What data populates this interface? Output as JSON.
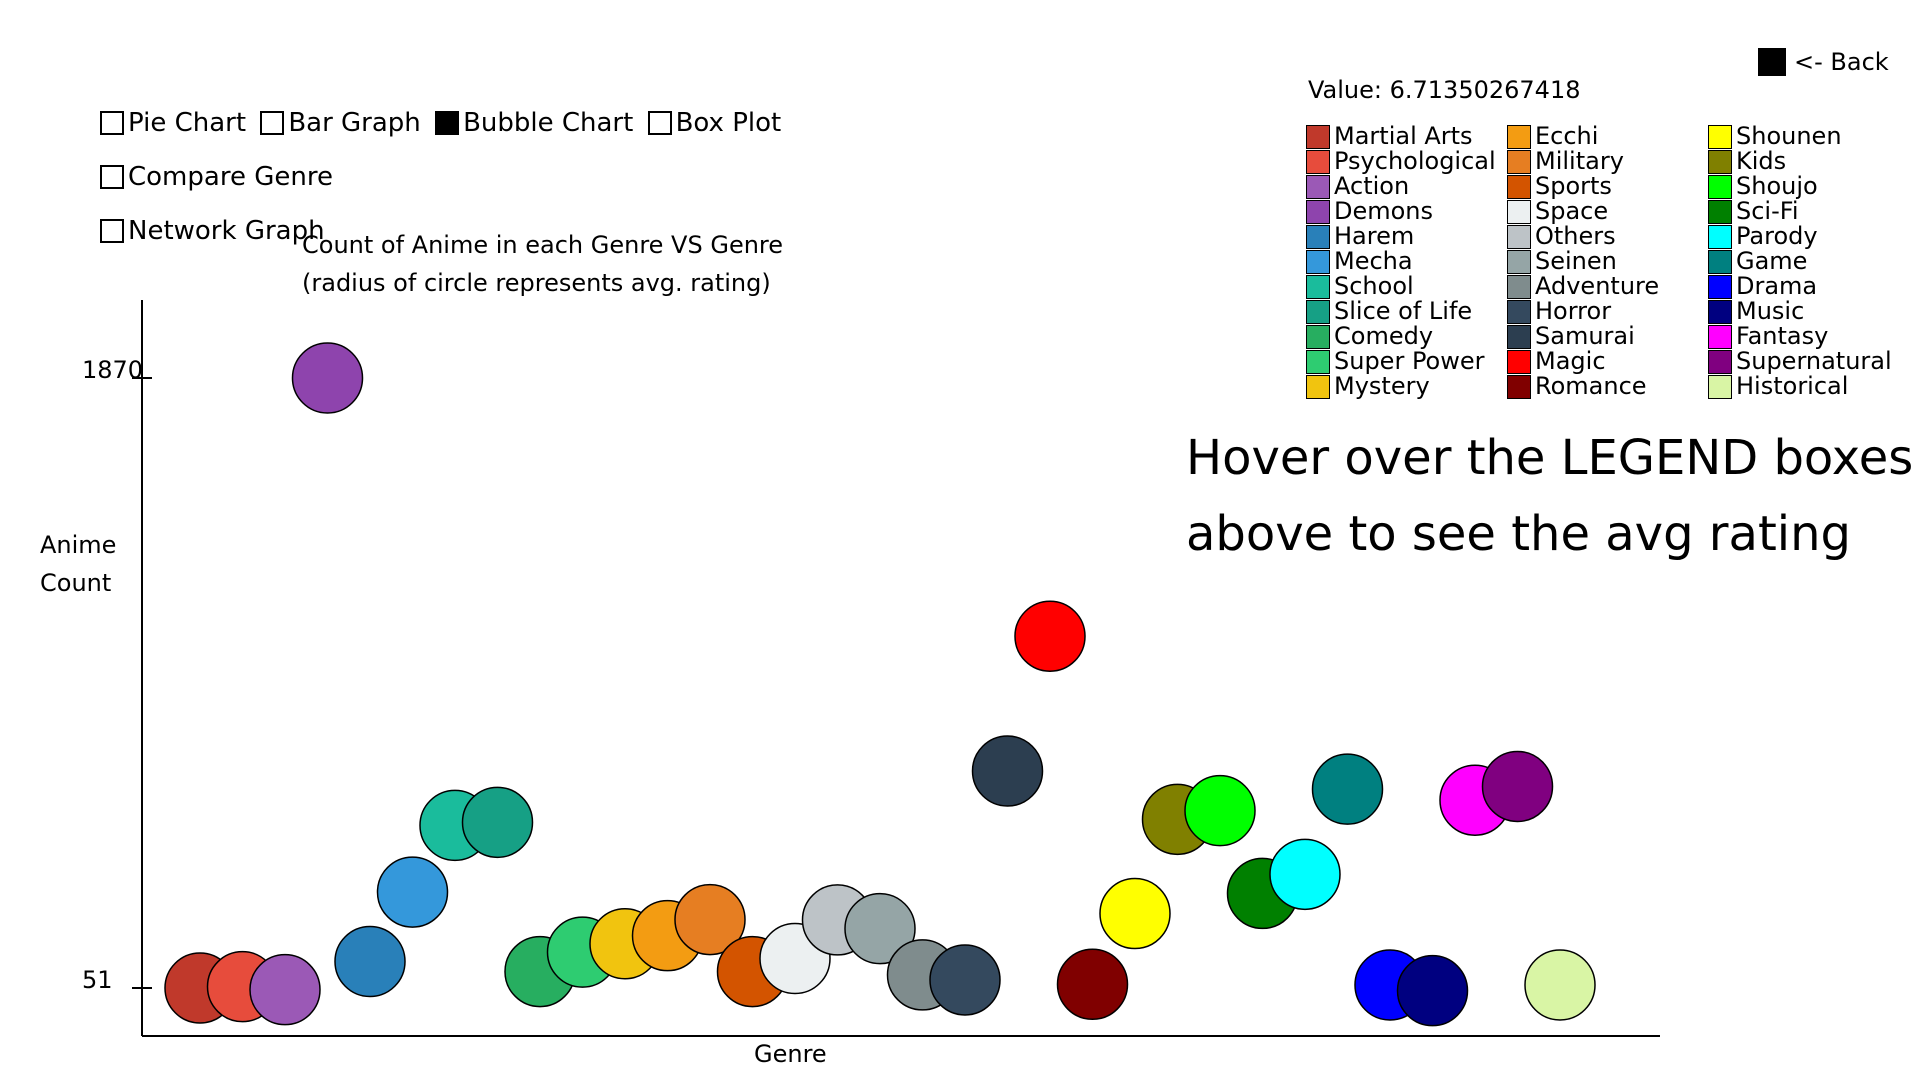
{
  "tabs": [
    {
      "label": "Pie Chart",
      "active": false
    },
    {
      "label": "Bar Graph",
      "active": false
    },
    {
      "label": "Bubble Chart",
      "active": true
    },
    {
      "label": "Box Plot",
      "active": false
    },
    {
      "label": "Compare Genre",
      "active": false
    },
    {
      "label": "Network Graph",
      "active": false
    }
  ],
  "back_label": "<- Back",
  "value_readout": "Value: 6.71350267418",
  "hint": {
    "line1": "Hover over the LEGEND boxes",
    "line2": "above to see the avg rating"
  },
  "legend": [
    {
      "name": "Martial Arts",
      "color": "#c0392b"
    },
    {
      "name": "Psychological",
      "color": "#e74c3c"
    },
    {
      "name": "Action",
      "color": "#9b59b6"
    },
    {
      "name": "Demons",
      "color": "#8e44ad"
    },
    {
      "name": "Harem",
      "color": "#2980b9"
    },
    {
      "name": "Mecha",
      "color": "#3498db"
    },
    {
      "name": "School",
      "color": "#1abc9c"
    },
    {
      "name": "Slice of Life",
      "color": "#16a085"
    },
    {
      "name": "Comedy",
      "color": "#27ae60"
    },
    {
      "name": "Super Power",
      "color": "#2ecc71"
    },
    {
      "name": "Mystery",
      "color": "#f1c40f"
    },
    {
      "name": "Ecchi",
      "color": "#f39c12"
    },
    {
      "name": "Military",
      "color": "#e67e22"
    },
    {
      "name": "Sports",
      "color": "#d35400"
    },
    {
      "name": "Space",
      "color": "#ecf0f1"
    },
    {
      "name": "Others",
      "color": "#bdc3c7"
    },
    {
      "name": "Seinen",
      "color": "#95a5a6"
    },
    {
      "name": "Adventure",
      "color": "#7f8c8d"
    },
    {
      "name": "Horror",
      "color": "#34495e"
    },
    {
      "name": "Samurai",
      "color": "#2c3e50"
    },
    {
      "name": "Magic",
      "color": "#ff0000"
    },
    {
      "name": "Romance",
      "color": "#800000"
    },
    {
      "name": "Shounen",
      "color": "#ffff00"
    },
    {
      "name": "Kids",
      "color": "#808000"
    },
    {
      "name": "Shoujo",
      "color": "#00ff00"
    },
    {
      "name": "Sci-Fi",
      "color": "#008000"
    },
    {
      "name": "Parody",
      "color": "#00ffff"
    },
    {
      "name": "Game",
      "color": "#008080"
    },
    {
      "name": "Drama",
      "color": "#0000ff"
    },
    {
      "name": "Music",
      "color": "#000080"
    },
    {
      "name": "Fantasy",
      "color": "#ff00ff"
    },
    {
      "name": "Supernatural",
      "color": "#800080"
    },
    {
      "name": "Historical",
      "color": "#d9f5a5"
    }
  ],
  "chart_data": {
    "type": "scatter",
    "title": "Count of Anime in each Genre VS Genre",
    "subtitle": "(radius of circle represents avg. rating)",
    "xlabel": "Genre",
    "ylabel_line1": "Anime",
    "ylabel_line2": "Count",
    "yticks": [
      "1870",
      "51"
    ],
    "ylim": [
      51,
      1870
    ],
    "categories": [
      "Martial Arts",
      "Psychological",
      "Action",
      "Demons",
      "Harem",
      "Mecha",
      "School",
      "Slice of Life",
      "Comedy",
      "Super Power",
      "Mystery",
      "Ecchi",
      "Military",
      "Sports",
      "Space",
      "Others",
      "Seinen",
      "Adventure",
      "Horror",
      "Samurai",
      "Magic",
      "Romance",
      "Shounen",
      "Kids",
      "Shoujo",
      "Sci-Fi",
      "Parody",
      "Game",
      "Drama",
      "Music",
      "Fantasy",
      "Supernatural",
      "Historical"
    ],
    "values": [
      51,
      55,
      46,
      1870,
      130,
      337,
      536,
      545,
      100,
      158,
      183,
      207,
      255,
      100,
      139,
      254,
      228,
      90,
      75,
      698,
      1100,
      62,
      273,
      554,
      580,
      333,
      390,
      644,
      60,
      43,
      611,
      652,
      60
    ]
  }
}
